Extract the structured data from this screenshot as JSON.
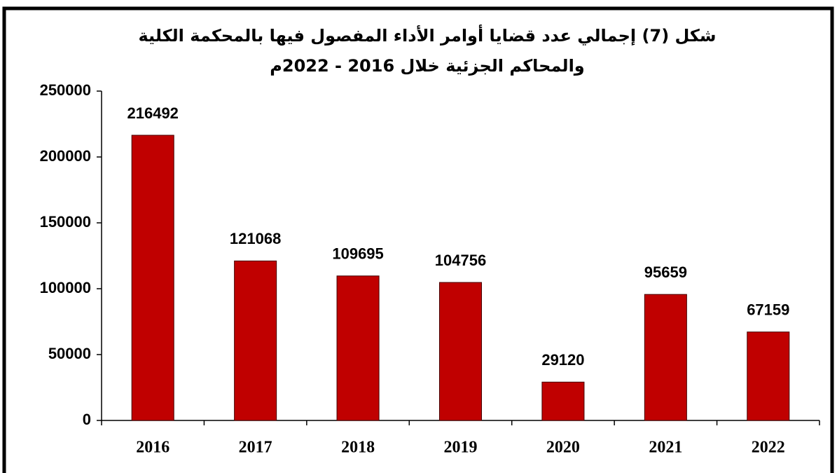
{
  "chart_data": {
    "type": "bar",
    "title": [
      "شكل (7) إجمالي عدد قضايا أوامر الأداء المفصول فيها بالمحكمة الكلية",
      "والمحاكم الجزئية خلال 2016 - 2022م"
    ],
    "categories": [
      "2016",
      "2017",
      "2018",
      "2019",
      "2020",
      "2021",
      "2022"
    ],
    "values": [
      216492,
      121068,
      109695,
      104756,
      29120,
      95659,
      67159
    ],
    "color": "#c00000",
    "ylim": [
      0,
      250000
    ],
    "yticks": [
      0,
      50000,
      100000,
      150000,
      200000,
      250000
    ],
    "grid": false
  }
}
